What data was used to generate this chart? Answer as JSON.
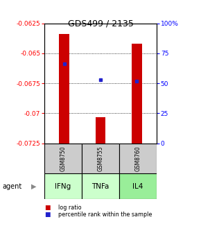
{
  "title": "GDS499 / 2135",
  "samples": [
    "GSM8750",
    "GSM8755",
    "GSM8760"
  ],
  "agents": [
    "IFNg",
    "TNFa",
    "IL4"
  ],
  "log_ratios": [
    -0.0634,
    -0.0703,
    -0.0642
  ],
  "percentile_ranks": [
    66,
    53,
    52
  ],
  "ylim": [
    -0.0725,
    -0.0625
  ],
  "yticks": [
    -0.0725,
    -0.07,
    -0.0675,
    -0.065,
    -0.0625
  ],
  "ytick_labels": [
    "-0.0725",
    "-0.07",
    "-0.0675",
    "-0.065",
    "-0.0625"
  ],
  "right_ytick_percents": [
    0,
    25,
    50,
    75,
    100
  ],
  "right_ytick_labels": [
    "0",
    "25",
    "50",
    "75",
    "100%"
  ],
  "bar_color": "#cc0000",
  "dot_color": "#2222cc",
  "agent_colors": [
    "#ccffcc",
    "#ccffcc",
    "#99ee99"
  ],
  "sample_bg": "#cccccc",
  "legend_items": [
    {
      "color": "#cc0000",
      "label": "log ratio"
    },
    {
      "color": "#2222cc",
      "label": "percentile rank within the sample"
    }
  ]
}
